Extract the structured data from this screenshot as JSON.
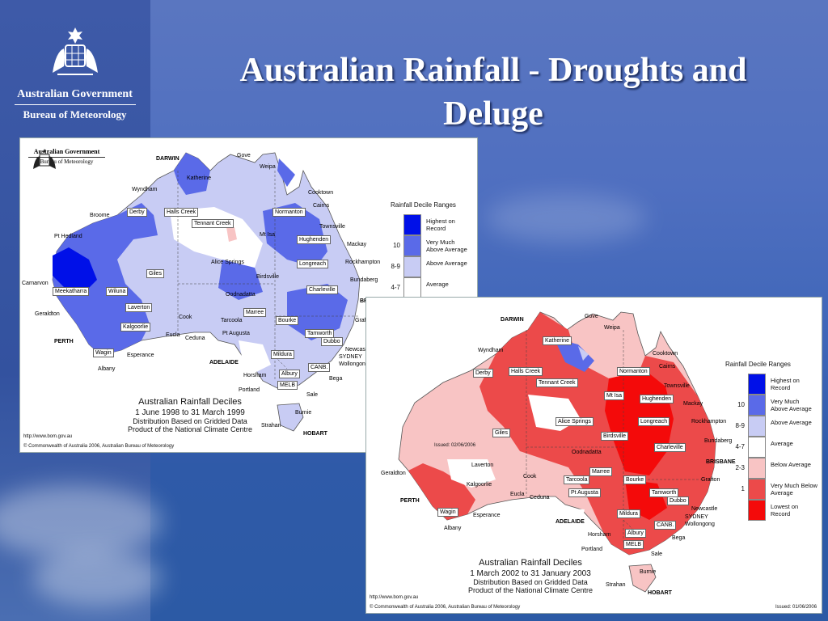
{
  "slide": {
    "title": "Australian Rainfall - Droughts and Deluge"
  },
  "logo": {
    "government": "Australian Government",
    "bureau": "Bureau of Meteorology"
  },
  "map1": {
    "header_gov": "Australian Government",
    "header_bureau": "Bureau of Meteorology",
    "caption_title": "Australian Rainfall Deciles",
    "caption_period": "1 June 1998 to 31 March 1999",
    "caption_line3": "Distribution Based on Gridded Data",
    "caption_line4": "Product of the National Climate Centre",
    "url": "http://www.bom.gov.au",
    "copyright": "© Commonwealth of Australia 2006, Australian Bureau of Meteorology",
    "legend_title": "Rainfall Decile Ranges",
    "places": [
      "DARWIN",
      "Gove",
      "Weipa",
      "Katherine",
      "Wyndham",
      "Cooktown",
      "Cairns",
      "Derby",
      "Halls Creek",
      "Normanton",
      "Broome",
      "Tennant Creek",
      "Townsville",
      "Pt Hedland",
      "Mt Isa",
      "Hughenden",
      "Mackay",
      "Alice Springs",
      "Longreach",
      "Rockhampton",
      "Giles",
      "Birdsville",
      "Bundaberg",
      "Carnarvon",
      "Meekatharra",
      "Wiluna",
      "Charleville",
      "BRISBANE",
      "Laverton",
      "Oodnadatta",
      "Marree",
      "Bourke",
      "Grafton",
      "Geraldton",
      "Kalgoorlie",
      "Cook",
      "Tarcoola",
      "Eucla",
      "Ceduna",
      "Pt Augusta",
      "Tamworth",
      "Dubbo",
      "PERTH",
      "Wagin",
      "Esperance",
      "Mildura",
      "Newcastle",
      "SYDNEY",
      "ADELAIDE",
      "Wollongong",
      "Albany",
      "CANB.",
      "Horsham",
      "Albury",
      "Bega",
      "MELB",
      "Portland",
      "Sale",
      "Burnie",
      "Strahan",
      "HOBART"
    ]
  },
  "map2": {
    "caption_title": "Australian Rainfall Deciles",
    "caption_period": "1 March 2002 to 31 January 2003",
    "caption_line3": "Distribution Based on Gridded Data",
    "caption_line4": "Product of the National Climate Centre",
    "url": "http://www.bom.gov.au",
    "copyright": "© Commonwealth of Australia 2006, Australian Bureau of Meteorology",
    "issued_top": "Issued: 02/06/2006",
    "issued_bottom": "Issued: 01/06/2006",
    "legend_title": "Rainfall Decile Ranges",
    "places": [
      "DARWIN",
      "Gove",
      "Weipa",
      "Katherine",
      "Wyndham",
      "Cooktown",
      "Cairns",
      "Derby",
      "Halls Creek",
      "Normanton",
      "Tennant Creek",
      "Townsville",
      "Mt Isa",
      "Hughenden",
      "Mackay",
      "Alice Springs",
      "Longreach",
      "Rockhampton",
      "Giles",
      "Birdsville",
      "Bundaberg",
      "Charleville",
      "Oodnadatta",
      "BRISBANE",
      "Laverton",
      "Marree",
      "Cook",
      "Bourke",
      "Grafton",
      "Geraldton",
      "Kalgoorlie",
      "Tarcoola",
      "Eucla",
      "Ceduna",
      "Pt Augusta",
      "Tamworth",
      "Dubbo",
      "PERTH",
      "Wagin",
      "Esperance",
      "Mildura",
      "Newcastle",
      "SYDNEY",
      "ADELAIDE",
      "Wollongong",
      "Albany",
      "CANB.",
      "Horsham",
      "Albury",
      "Bega",
      "MELB",
      "Portland",
      "Sale",
      "Burnie",
      "Strahan",
      "HOBART"
    ]
  },
  "legend": [
    {
      "label": "Highest on Record",
      "num": "",
      "color": "#0010e8"
    },
    {
      "label": "Very Much Above Average",
      "num": "10",
      "color": "#5a6ae8"
    },
    {
      "label": "Above Average",
      "num": "8-9",
      "color": "#c8ccf4"
    },
    {
      "label": "Average",
      "num": "4-7",
      "color": "#ffffff"
    },
    {
      "label": "Below Average",
      "num": "2-3",
      "color": "#f8c4c4"
    },
    {
      "label": "Very Much Below Average",
      "num": "1",
      "color": "#ec4a4a"
    },
    {
      "label": "Lowest on Record",
      "num": "",
      "color": "#f40a0a"
    }
  ]
}
